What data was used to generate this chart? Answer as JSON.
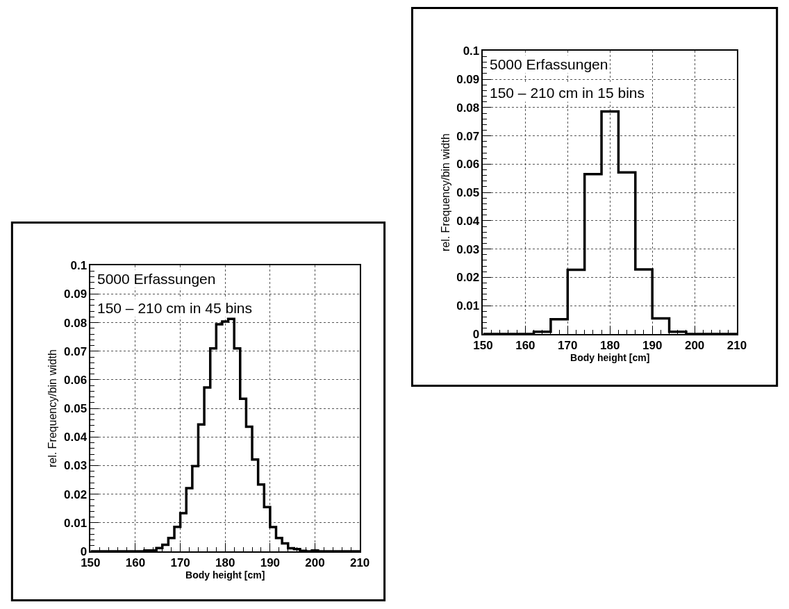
{
  "chart_data": [
    {
      "type": "histogram",
      "xlabel": "Body height [cm]",
      "ylabel": "rel. Frequency/bin width",
      "annotations": [
        "5000 Erfassungen",
        "150 – 210 cm in 15 bins"
      ],
      "bins": [
        150,
        154,
        158,
        162,
        166,
        170,
        174,
        178,
        182,
        186,
        190,
        194,
        198,
        202,
        206,
        210
      ],
      "values": [
        0,
        0,
        0,
        0.0008,
        0.0052,
        0.0227,
        0.0565,
        0.0786,
        0.0571,
        0.0228,
        0.0055,
        0.0008,
        0,
        0,
        0
      ],
      "color": "#000000",
      "xlim": [
        150,
        210
      ],
      "ylim": [
        0,
        0.1
      ],
      "xticks": [
        150,
        160,
        170,
        180,
        190,
        200,
        210
      ],
      "yticks": [
        0,
        0.01,
        0.02,
        0.03,
        0.04,
        0.05,
        0.06,
        0.07,
        0.08,
        0.09,
        0.1
      ],
      "grid": true
    },
    {
      "type": "histogram",
      "xlabel": "Body height [cm]",
      "ylabel": "rel. Frequency/bin width",
      "annotations": [
        "5000 Erfassungen",
        "150 – 210 cm in 45 bins"
      ],
      "bins": [
        150,
        151.33,
        152.67,
        154,
        155.33,
        156.67,
        158,
        159.33,
        160.67,
        162,
        163.33,
        164.67,
        166,
        167.33,
        168.67,
        170,
        171.33,
        172.67,
        174,
        175.33,
        176.67,
        178,
        179.33,
        180.67,
        182,
        183.33,
        184.67,
        186,
        187.33,
        188.67,
        190,
        191.33,
        192.67,
        194,
        195.33,
        196.67,
        198,
        199.33,
        200.67,
        202,
        203.33,
        204.67,
        206,
        207.33,
        208.67,
        210
      ],
      "values": [
        0,
        0,
        0,
        0,
        0,
        0,
        0,
        0,
        0,
        0.0003,
        0.0003,
        0.0012,
        0.0023,
        0.0047,
        0.0086,
        0.0134,
        0.0221,
        0.0298,
        0.0444,
        0.0573,
        0.071,
        0.0794,
        0.0804,
        0.0813,
        0.071,
        0.0534,
        0.0436,
        0.0321,
        0.0234,
        0.0155,
        0.0085,
        0.0047,
        0.0028,
        0.0011,
        0.0008,
        0.0002,
        0,
        0.0003,
        0,
        0,
        0,
        0,
        0,
        0,
        0
      ],
      "color": "#000000",
      "xlim": [
        150,
        210
      ],
      "ylim": [
        0,
        0.1
      ],
      "xticks": [
        150,
        160,
        170,
        180,
        190,
        200,
        210
      ],
      "yticks": [
        0,
        0.01,
        0.02,
        0.03,
        0.04,
        0.05,
        0.06,
        0.07,
        0.08,
        0.09,
        0.1
      ],
      "grid": true
    }
  ]
}
